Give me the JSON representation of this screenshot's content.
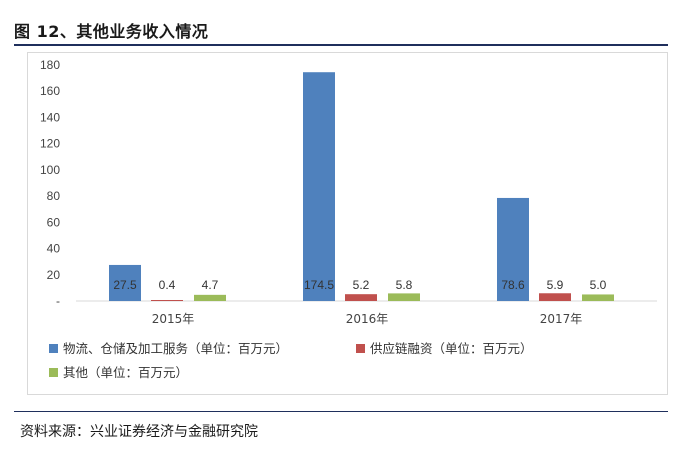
{
  "figure": {
    "title": "图 12、其他业务收入情况",
    "source": "资料来源：兴业证券经济与金融研究院"
  },
  "chart_data": {
    "type": "bar",
    "categories": [
      "2015年",
      "2016年",
      "2017年"
    ],
    "series": [
      {
        "name": "物流、仓储及加工服务（单位：百万元）",
        "values": [
          27.5,
          174.5,
          78.6
        ],
        "labels": [
          "27.5",
          "174.5",
          "78.6"
        ],
        "color": "#4f81bd"
      },
      {
        "name": "供应链融资（单位：百万元）",
        "values": [
          0.4,
          5.2,
          5.9
        ],
        "labels": [
          "0.4",
          "5.2",
          "5.9"
        ],
        "color": "#c0504d"
      },
      {
        "name": "其他（单位：百万元）",
        "values": [
          4.7,
          5.8,
          5.0
        ],
        "labels": [
          "4.7",
          "5.8",
          "5.0"
        ],
        "color": "#9bbb59"
      }
    ],
    "yticks": [
      "-",
      "20",
      "40",
      "60",
      "80",
      "100",
      "120",
      "140",
      "160",
      "180"
    ],
    "ylim": [
      0,
      180
    ],
    "grid": false,
    "legend_position": "bottom-left"
  }
}
